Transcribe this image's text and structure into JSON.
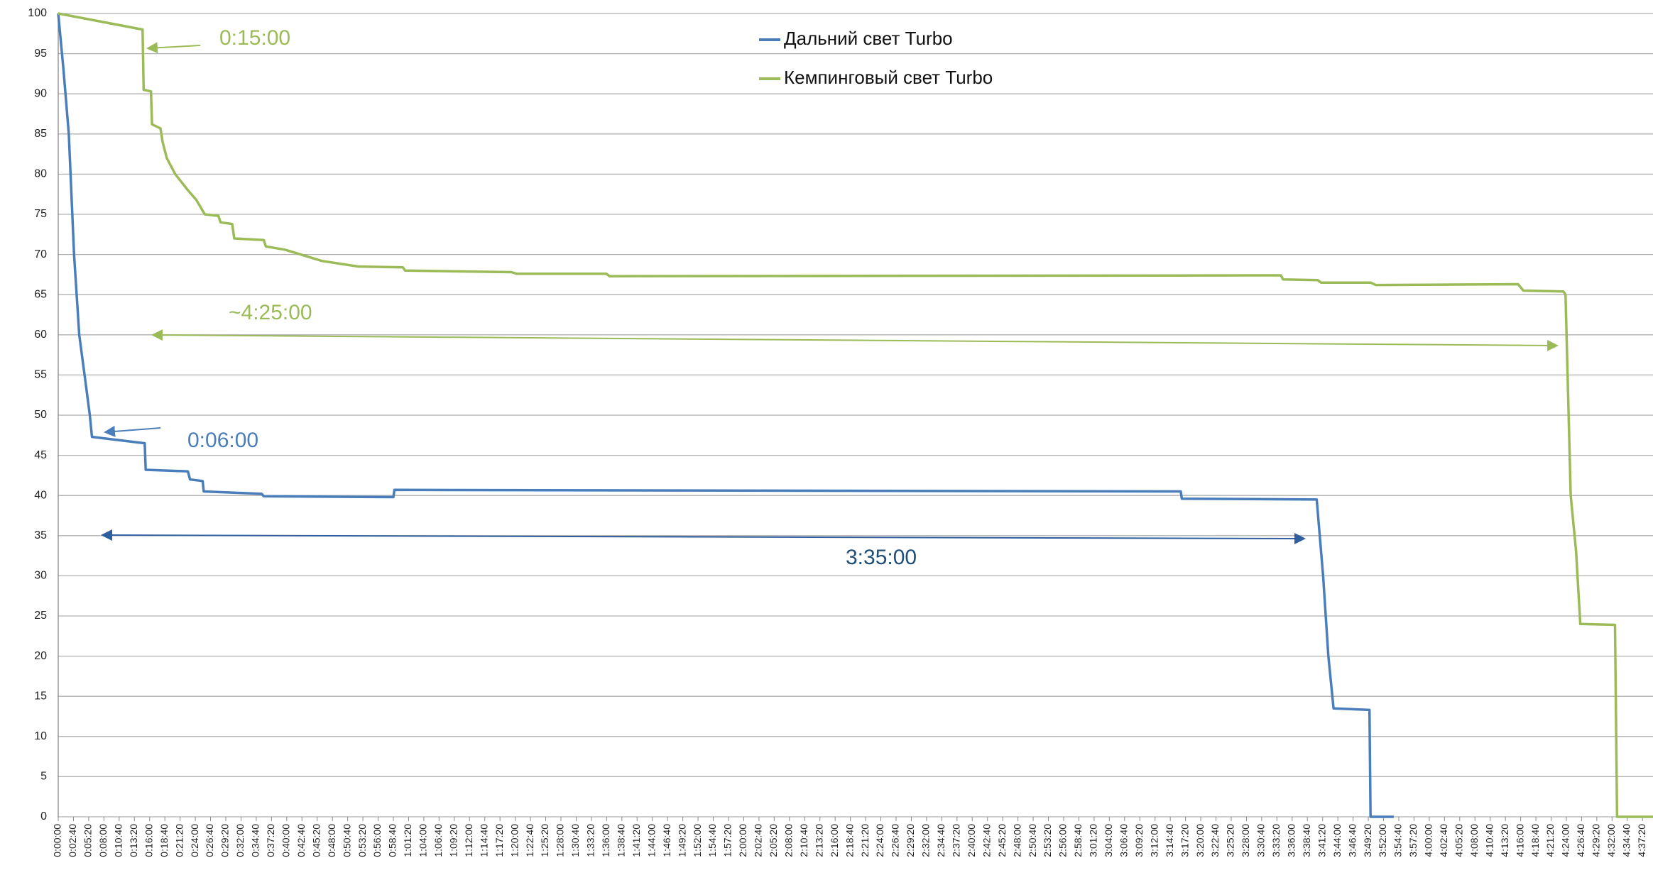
{
  "chart_data": {
    "type": "line",
    "series": [
      {
        "name": "Дальний свет Turbo",
        "color": "#4a7ebb",
        "x": [
          0,
          55,
          111,
          166,
          221,
          277,
          332,
          354,
          908,
          919,
          1362,
          1384,
          1517,
          1528,
          2137,
          2159,
          3520,
          3531,
          11790,
          11801,
          13218,
          13285,
          13340,
          13395,
          13772,
          13783,
          14027
        ],
        "values": [
          100,
          93,
          85,
          70,
          60,
          55,
          50,
          47.3,
          46.5,
          43.2,
          43,
          42,
          41.8,
          40.5,
          40.2,
          39.9,
          39.8,
          40.7,
          40.5,
          39.6,
          39.5,
          30,
          20,
          13.5,
          13.3,
          0,
          0
        ]
      },
      {
        "name": "Кемпинговый свет Turbo",
        "color": "#9bbb59",
        "x": [
          0,
          886,
          897,
          974,
          985,
          1074,
          1096,
          1140,
          1229,
          1362,
          1450,
          1539,
          1683,
          1705,
          1827,
          1849,
          2159,
          2181,
          2380,
          2546,
          2768,
          3155,
          3620,
          3642,
          4760,
          4816,
          5757,
          5790,
          12842,
          12864,
          13229,
          13263,
          13783,
          13838,
          15333,
          15388,
          15809,
          15831,
          15886,
          15942,
          15986,
          16351,
          16373,
          16750
        ],
        "values": [
          100,
          98,
          90.5,
          90.3,
          86.2,
          85.7,
          84,
          82,
          80,
          78,
          76.8,
          75,
          74.8,
          74,
          73.8,
          72,
          71.8,
          71,
          70.6,
          70,
          69.2,
          68.5,
          68.4,
          68,
          67.8,
          67.6,
          67.6,
          67.3,
          67.4,
          66.9,
          66.8,
          66.5,
          66.5,
          66.2,
          66.3,
          65.5,
          65.4,
          65,
          40,
          33,
          24,
          23.9,
          0,
          0
        ]
      }
    ],
    "xlim": [
      0,
      16750
    ],
    "ylim": [
      0,
      100
    ],
    "yticks": [
      0,
      5,
      10,
      15,
      20,
      25,
      30,
      35,
      40,
      45,
      50,
      55,
      60,
      65,
      70,
      75,
      80,
      85,
      90,
      95,
      100
    ],
    "xticks": [
      {
        "value": 0,
        "label": "0:00:00"
      },
      {
        "value": 160,
        "label": "0:02:40"
      },
      {
        "value": 320,
        "label": "0:05:20"
      },
      {
        "value": 480,
        "label": "0:08:00"
      },
      {
        "value": 640,
        "label": "0:10:40"
      },
      {
        "value": 800,
        "label": "0:13:20"
      },
      {
        "value": 960,
        "label": "0:16:00"
      },
      {
        "value": 1120,
        "label": "0:18:40"
      },
      {
        "value": 1280,
        "label": "0:21:20"
      },
      {
        "value": 1440,
        "label": "0:24:00"
      },
      {
        "value": 1600,
        "label": "0:26:40"
      },
      {
        "value": 1760,
        "label": "0:29:20"
      },
      {
        "value": 1920,
        "label": "0:32:00"
      },
      {
        "value": 2080,
        "label": "0:34:40"
      },
      {
        "value": 2240,
        "label": "0:37:20"
      },
      {
        "value": 2400,
        "label": "0:40:00"
      },
      {
        "value": 2560,
        "label": "0:42:40"
      },
      {
        "value": 2720,
        "label": "0:45:20"
      },
      {
        "value": 2880,
        "label": "0:48:00"
      },
      {
        "value": 3040,
        "label": "0:50:40"
      },
      {
        "value": 3200,
        "label": "0:53:20"
      },
      {
        "value": 3360,
        "label": "0:56:00"
      },
      {
        "value": 3520,
        "label": "0:58:40"
      },
      {
        "value": 3680,
        "label": "1:01:20"
      },
      {
        "value": 3840,
        "label": "1:04:00"
      },
      {
        "value": 4000,
        "label": "1:06:40"
      },
      {
        "value": 4160,
        "label": "1:09:20"
      },
      {
        "value": 4320,
        "label": "1:12:00"
      },
      {
        "value": 4480,
        "label": "1:14:40"
      },
      {
        "value": 4640,
        "label": "1:17:20"
      },
      {
        "value": 4800,
        "label": "1:20:00"
      },
      {
        "value": 4960,
        "label": "1:22:40"
      },
      {
        "value": 5120,
        "label": "1:25:20"
      },
      {
        "value": 5280,
        "label": "1:28:00"
      },
      {
        "value": 5440,
        "label": "1:30:40"
      },
      {
        "value": 5600,
        "label": "1:33:20"
      },
      {
        "value": 5760,
        "label": "1:36:00"
      },
      {
        "value": 5920,
        "label": "1:38:40"
      },
      {
        "value": 6080,
        "label": "1:41:20"
      },
      {
        "value": 6240,
        "label": "1:44:00"
      },
      {
        "value": 6400,
        "label": "1:46:40"
      },
      {
        "value": 6560,
        "label": "1:49:20"
      },
      {
        "value": 6720,
        "label": "1:52:00"
      },
      {
        "value": 6880,
        "label": "1:54:40"
      },
      {
        "value": 7040,
        "label": "1:57:20"
      },
      {
        "value": 7200,
        "label": "2:00:00"
      },
      {
        "value": 7360,
        "label": "2:02:40"
      },
      {
        "value": 7520,
        "label": "2:05:20"
      },
      {
        "value": 7680,
        "label": "2:08:00"
      },
      {
        "value": 7840,
        "label": "2:10:40"
      },
      {
        "value": 8000,
        "label": "2:13:20"
      },
      {
        "value": 8160,
        "label": "2:16:00"
      },
      {
        "value": 8320,
        "label": "2:18:40"
      },
      {
        "value": 8480,
        "label": "2:21:20"
      },
      {
        "value": 8640,
        "label": "2:24:00"
      },
      {
        "value": 8800,
        "label": "2:26:40"
      },
      {
        "value": 8960,
        "label": "2:29:20"
      },
      {
        "value": 9120,
        "label": "2:32:00"
      },
      {
        "value": 9280,
        "label": "2:34:40"
      },
      {
        "value": 9440,
        "label": "2:37:20"
      },
      {
        "value": 9600,
        "label": "2:40:00"
      },
      {
        "value": 9760,
        "label": "2:42:40"
      },
      {
        "value": 9920,
        "label": "2:45:20"
      },
      {
        "value": 10080,
        "label": "2:48:00"
      },
      {
        "value": 10240,
        "label": "2:50:40"
      },
      {
        "value": 10400,
        "label": "2:53:20"
      },
      {
        "value": 10560,
        "label": "2:56:00"
      },
      {
        "value": 10720,
        "label": "2:58:40"
      },
      {
        "value": 10880,
        "label": "3:01:20"
      },
      {
        "value": 11040,
        "label": "3:04:00"
      },
      {
        "value": 11200,
        "label": "3:06:40"
      },
      {
        "value": 11360,
        "label": "3:09:20"
      },
      {
        "value": 11520,
        "label": "3:12:00"
      },
      {
        "value": 11680,
        "label": "3:14:40"
      },
      {
        "value": 11840,
        "label": "3:17:20"
      },
      {
        "value": 12000,
        "label": "3:20:00"
      },
      {
        "value": 12160,
        "label": "3:22:40"
      },
      {
        "value": 12320,
        "label": "3:25:20"
      },
      {
        "value": 12480,
        "label": "3:28:00"
      },
      {
        "value": 12640,
        "label": "3:30:40"
      },
      {
        "value": 12800,
        "label": "3:33:20"
      },
      {
        "value": 12960,
        "label": "3:36:00"
      },
      {
        "value": 13120,
        "label": "3:38:40"
      },
      {
        "value": 13280,
        "label": "3:41:20"
      },
      {
        "value": 13440,
        "label": "3:44:00"
      },
      {
        "value": 13600,
        "label": "3:46:40"
      },
      {
        "value": 13760,
        "label": "3:49:20"
      },
      {
        "value": 13920,
        "label": "3:52:00"
      },
      {
        "value": 14080,
        "label": "3:54:40"
      },
      {
        "value": 14240,
        "label": "3:57:20"
      },
      {
        "value": 14400,
        "label": "4:00:00"
      },
      {
        "value": 14560,
        "label": "4:02:40"
      },
      {
        "value": 14720,
        "label": "4:05:20"
      },
      {
        "value": 14880,
        "label": "4:08:00"
      },
      {
        "value": 15040,
        "label": "4:10:40"
      },
      {
        "value": 15200,
        "label": "4:13:20"
      },
      {
        "value": 15360,
        "label": "4:16:00"
      },
      {
        "value": 15520,
        "label": "4:18:40"
      },
      {
        "value": 15680,
        "label": "4:21:20"
      },
      {
        "value": 15840,
        "label": "4:24:00"
      },
      {
        "value": 16000,
        "label": "4:26:40"
      },
      {
        "value": 16160,
        "label": "4:29:20"
      },
      {
        "value": 16320,
        "label": "4:32:00"
      },
      {
        "value": 16480,
        "label": "4:34:40"
      },
      {
        "value": 16640,
        "label": "4:37:20"
      }
    ],
    "grid": true,
    "annotations": [
      "0:15:00",
      "~4:25:00",
      "0:06:00",
      "3:35:00"
    ]
  }
}
